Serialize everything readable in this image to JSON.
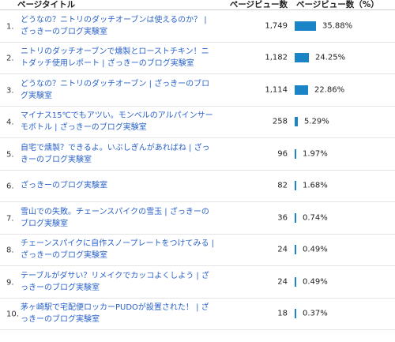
{
  "header": {
    "title_col": "ページタイトル",
    "pageviews_col": "ページビュー数",
    "share_col": "ページビュー数（%）"
  },
  "rows": [
    {
      "rank": "1.",
      "title": "どうなの？ニトリのダッチオーブンは使えるのか？ | ざっきーのブログ実験室",
      "pageviews": "1,749",
      "percent": "35.88%",
      "share": 35.88
    },
    {
      "rank": "2.",
      "title": "ニトリのダッチオーブンで燻製とローストチキン！ニトダッチ使用レポート | ざっきーのブログ実験室",
      "pageviews": "1,182",
      "percent": "24.25%",
      "share": 24.25
    },
    {
      "rank": "3.",
      "title": "どうなの？ニトリのダッチオーブン | ざっきーのブログ実験室",
      "pageviews": "1,114",
      "percent": "22.86%",
      "share": 22.86
    },
    {
      "rank": "4.",
      "title": "マイナス15℃でもアツい。モンベルのアルパインサーモボトル | ざっきーのブログ実験室",
      "pageviews": "258",
      "percent": "5.29%",
      "share": 5.29
    },
    {
      "rank": "5.",
      "title": "自宅で燻製？できるよ。いぶしぎんがあればね | ざっきーのブログ実験室",
      "pageviews": "96",
      "percent": "1.97%",
      "share": 1.97
    },
    {
      "rank": "6.",
      "title": "ざっきーのブログ実験室",
      "pageviews": "82",
      "percent": "1.68%",
      "share": 1.68
    },
    {
      "rank": "7.",
      "title": "雪山での失敗。チェーンスパイクの雪玉 | ざっきーのブログ実験室",
      "pageviews": "36",
      "percent": "0.74%",
      "share": 0.74
    },
    {
      "rank": "8.",
      "title": "チェーンスパイクに自作スノープレートをつけてみる | ざっきーのブログ実験室",
      "pageviews": "24",
      "percent": "0.49%",
      "share": 0.49
    },
    {
      "rank": "9.",
      "title": "テーブルがダサい？リメイクでカッコよくしよう | ざっきーのブログ実験室",
      "pageviews": "24",
      "percent": "0.49%",
      "share": 0.49
    },
    {
      "rank": "10.",
      "title": "茅ヶ崎駅で宅配便ロッカーPUDOが設置された！ | ざっきーのブログ実験室",
      "pageviews": "18",
      "percent": "0.37%",
      "share": 0.37
    }
  ],
  "colors": {
    "bar": "#1a84c6",
    "link": "#2a62c9"
  }
}
